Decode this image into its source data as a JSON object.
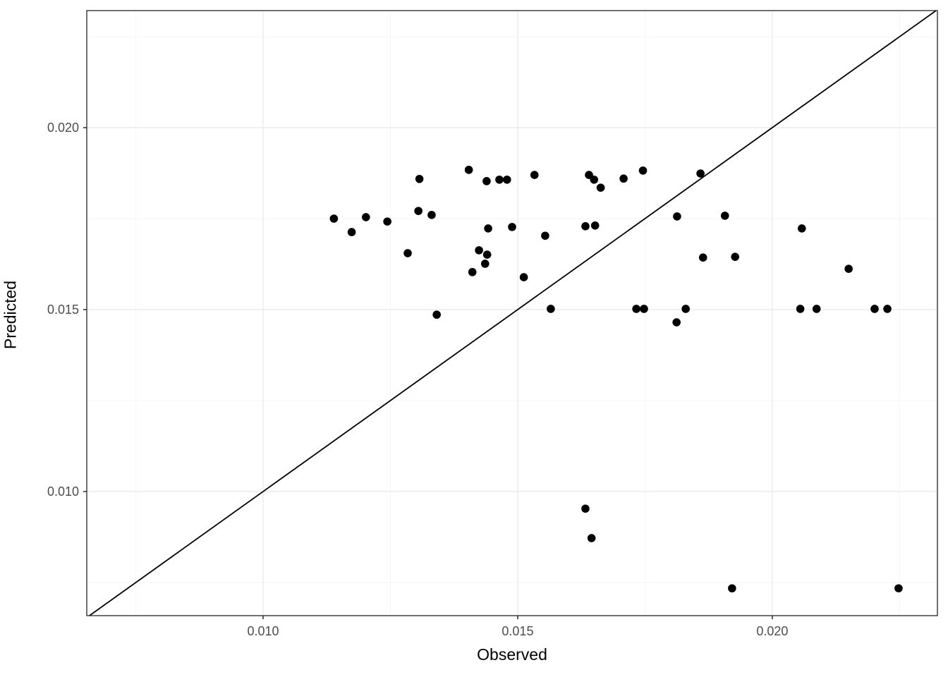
{
  "chart_data": {
    "type": "scatter",
    "title": "",
    "xlabel": "Observed",
    "ylabel": "Predicted",
    "legend": "none",
    "grid": "major+minor",
    "xlim": [
      0.006537,
      0.023243
    ],
    "ylim": [
      0.006589,
      0.023217
    ],
    "x_major_ticks": {
      "values": [
        0.01,
        0.015,
        0.02
      ],
      "labels": [
        "0.010",
        "0.015",
        "0.020"
      ]
    },
    "y_major_ticks": {
      "values": [
        0.01,
        0.015,
        0.02
      ],
      "labels": [
        "0.010",
        "0.015",
        "0.020"
      ]
    },
    "x_minor_ticks": [
      0.0075,
      0.0125,
      0.0175,
      0.0225
    ],
    "y_minor_ticks": [
      0.0075,
      0.0125,
      0.0175,
      0.0225
    ],
    "reference_line": {
      "type": "identity",
      "slope": 1,
      "intercept": 0
    },
    "points": [
      [
        0.01139,
        0.0175
      ],
      [
        0.01174,
        0.01713
      ],
      [
        0.01202,
        0.01754
      ],
      [
        0.01244,
        0.01742
      ],
      [
        0.01305,
        0.01771
      ],
      [
        0.01331,
        0.0176
      ],
      [
        0.01307,
        0.01859
      ],
      [
        0.01404,
        0.01884
      ],
      [
        0.01439,
        0.01853
      ],
      [
        0.01464,
        0.01857
      ],
      [
        0.01479,
        0.01857
      ],
      [
        0.01533,
        0.0187
      ],
      [
        0.01442,
        0.01723
      ],
      [
        0.01489,
        0.01727
      ],
      [
        0.0164,
        0.0187
      ],
      [
        0.0165,
        0.01857
      ],
      [
        0.01663,
        0.01835
      ],
      [
        0.01708,
        0.0186
      ],
      [
        0.01746,
        0.01882
      ],
      [
        0.01859,
        0.01874
      ],
      [
        0.01633,
        0.01729
      ],
      [
        0.01652,
        0.01731
      ],
      [
        0.01554,
        0.01703
      ],
      [
        0.01813,
        0.01756
      ],
      [
        0.01907,
        0.01758
      ],
      [
        0.02058,
        0.01723
      ],
      [
        0.01284,
        0.01655
      ],
      [
        0.01424,
        0.01663
      ],
      [
        0.0144,
        0.01651
      ],
      [
        0.01436,
        0.01626
      ],
      [
        0.01411,
        0.01603
      ],
      [
        0.01341,
        0.01486
      ],
      [
        0.01512,
        0.01589
      ],
      [
        0.01565,
        0.01502
      ],
      [
        0.01733,
        0.01502
      ],
      [
        0.01748,
        0.01502
      ],
      [
        0.0183,
        0.01502
      ],
      [
        0.01812,
        0.01465
      ],
      [
        0.01864,
        0.01643
      ],
      [
        0.01927,
        0.01645
      ],
      [
        0.0215,
        0.01612
      ],
      [
        0.02055,
        0.01502
      ],
      [
        0.02087,
        0.01502
      ],
      [
        0.02201,
        0.01502
      ],
      [
        0.02226,
        0.01502
      ],
      [
        0.01633,
        0.00953
      ],
      [
        0.01645,
        0.00872
      ],
      [
        0.01921,
        0.00734
      ],
      [
        0.02248,
        0.00734
      ]
    ]
  },
  "style": {
    "background": "#ffffff",
    "panel_background": "#ffffff",
    "grid_major_color": "#ebebeb",
    "grid_minor_color": "#f6f6f6",
    "panel_border_color": "#333333",
    "tick_color": "#333333",
    "tick_label_color": "#4d4d4d",
    "axis_title_color": "#000000",
    "point_color": "#000000",
    "line_color": "#000000"
  }
}
